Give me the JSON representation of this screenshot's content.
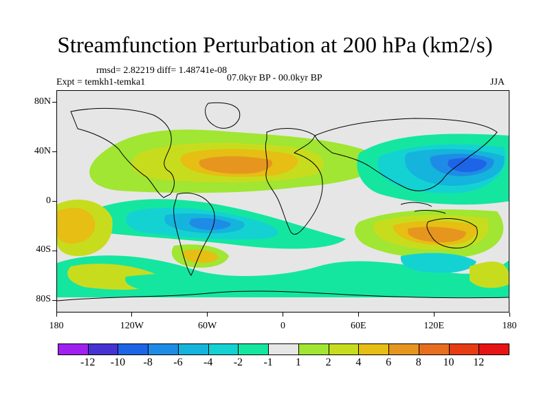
{
  "title": "Streamfunction Perturbation at 200 hPa (km2/s)",
  "rmsd_line": "rmsd= 2.82219 diff= 1.48741e-08",
  "expt_line": "Expt = temkh1-temka1",
  "period_line": "07.0kyr BP - 00.0kyr BP",
  "season": "JJA",
  "y_axis": {
    "ticks": [
      {
        "label": "80N",
        "lat": 80
      },
      {
        "label": "40N",
        "lat": 40
      },
      {
        "label": "0",
        "lat": 0
      },
      {
        "label": "40S",
        "lat": -40
      },
      {
        "label": "80S",
        "lat": -80
      }
    ]
  },
  "x_axis": {
    "ticks": [
      {
        "label": "180",
        "lon": -180
      },
      {
        "label": "120W",
        "lon": -120
      },
      {
        "label": "60W",
        "lon": -60
      },
      {
        "label": "0",
        "lon": 0
      },
      {
        "label": "60E",
        "lon": 60
      },
      {
        "label": "120E",
        "lon": 120
      },
      {
        "label": "180",
        "lon": 180
      }
    ]
  },
  "colorbar": {
    "levels": [
      "-12",
      "-10",
      "-8",
      "-6",
      "-4",
      "-2",
      "-1",
      "1",
      "2",
      "4",
      "6",
      "8",
      "10",
      "12"
    ],
    "colors": [
      "#a020f0",
      "#4632d2",
      "#1e64e6",
      "#1e8ce6",
      "#14b4dc",
      "#14d2d2",
      "#14e6a0",
      "#e6e6e6",
      "#a0e632",
      "#c8dc1e",
      "#e6be14",
      "#e6961e",
      "#e66e1e",
      "#e63c14",
      "#e61414"
    ]
  },
  "chart_data": {
    "type": "map",
    "variable": "Streamfunction Perturbation at 200 hPa (km2/s)",
    "lat_range": [
      -90,
      90
    ],
    "lon_range": [
      -180,
      180
    ],
    "units": "km2/s",
    "features": [
      {
        "region": "North Atlantic / North Africa",
        "sign": "positive",
        "peak_level": 8
      },
      {
        "region": "Northwest Pacific",
        "sign": "negative",
        "peak_level": -8
      },
      {
        "region": "South America / South Atlantic",
        "sign": "negative",
        "peak_level": -6
      },
      {
        "region": "Australia / Indian Ocean",
        "sign": "positive",
        "peak_level": 8
      },
      {
        "region": "South Pacific (dateline)",
        "sign": "positive",
        "peak_level": 6
      }
    ]
  }
}
